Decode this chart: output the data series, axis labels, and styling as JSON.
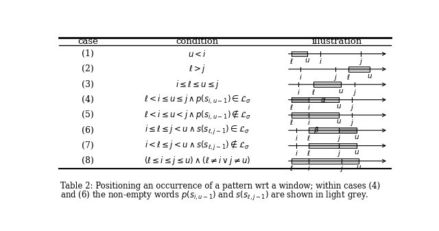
{
  "headers": [
    "case",
    "condition",
    "illustration"
  ],
  "cases": [
    "(1)",
    "(2)",
    "(3)",
    "(4)",
    "(5)",
    "(6)",
    "(7)",
    "(8)"
  ],
  "conditions": [
    "$u < i$",
    "$\\ell > j$",
    "$i \\leq \\ell \\leq u \\leq j$",
    "$\\ell < i \\leq u \\leq j \\wedge p(s_{i,u-1}) \\in \\mathcal{L}_{\\sigma}$",
    "$\\ell < i \\leq u < j \\wedge p(s_{i,u-1}) \\notin \\mathcal{L}_{\\sigma}$",
    "$i \\leq \\ell \\leq j < u \\wedge s(s_{\\ell,j-1}) \\in \\mathcal{L}_{\\sigma}$",
    "$i < \\ell \\leq j < u \\wedge s(s_{\\ell,j-1}) \\notin \\mathcal{L}_{\\sigma}$",
    "$(\\ell \\leq i \\leq j \\leq u) \\wedge (\\ell \\neq i \\vee j \\neq u)$"
  ],
  "bg_color": "#ffffff",
  "gray_box": "#c8c8c8",
  "dark_box": "#a0a0a0"
}
